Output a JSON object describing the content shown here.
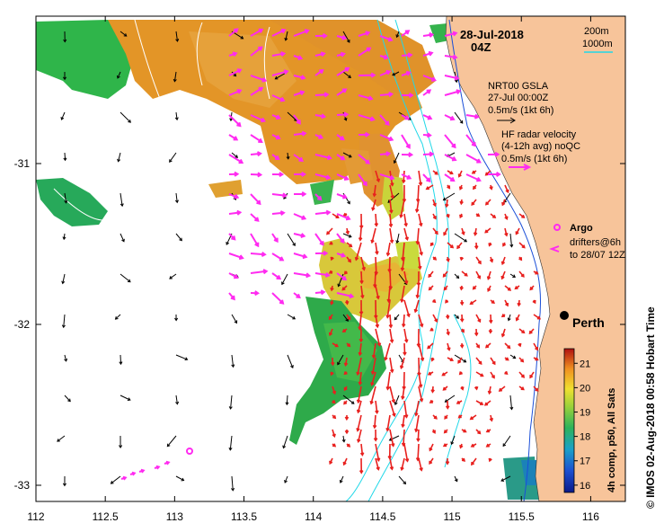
{
  "header": {
    "date": "28-Jul-2018",
    "time": "04Z"
  },
  "depth_legend": {
    "contour_200": "200m",
    "contour_1000": "1000m",
    "color_200": "#1a4fd8",
    "color_1000": "#20d8e8"
  },
  "gsla_legend": {
    "title": "NRT00 GSLA",
    "date": "27-Jul 00:00Z",
    "scale": "0.5m/s (1kt 6h)"
  },
  "hf_legend": {
    "title": "HF radar velocity",
    "subtitle": "(4-12h avg) noQC",
    "scale": "0.5m/s (1kt 6h)"
  },
  "argo_legend": {
    "label": "Argo"
  },
  "drifter_legend": {
    "line1": "drifters@6h",
    "line2": "to 28/07 12Z"
  },
  "place": {
    "name": "Perth"
  },
  "x_axis": {
    "ticks": [
      "112",
      "112.5",
      "113",
      "113.5",
      "114",
      "114.5",
      "115",
      "115.5",
      "116"
    ]
  },
  "y_axis": {
    "ticks": [
      "-31",
      "-32",
      "-33"
    ]
  },
  "colorbar": {
    "ticks": [
      "21",
      "20",
      "19",
      "18",
      "17",
      "16"
    ],
    "label": "4h comp, p50, All Sats",
    "range": [
      15.7,
      21.6
    ]
  },
  "credit": "© IMOS 02-Aug-2018 00:58 Hobart Time",
  "colors": {
    "land": "#f7c49a",
    "hf_arrow": "#e8201e",
    "drifter": "#ff2bf0",
    "gsla_arrow": "#000000"
  }
}
